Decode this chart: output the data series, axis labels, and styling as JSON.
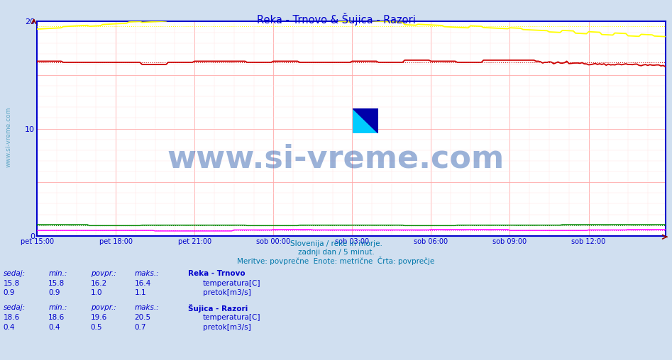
{
  "title": "Reka - Trnovo & Šujica - Razori",
  "title_color": "#0000cc",
  "background_color": "#d0dff0",
  "plot_bg_color": "#ffffff",
  "grid_color_major": "#ffaaaa",
  "grid_color_minor": "#ffe0e0",
  "x_labels": [
    "pet 15:00",
    "pet 18:00",
    "pet 21:00",
    "sob 00:00",
    "sob 03:00",
    "sob 06:00",
    "sob 09:00",
    "sob 12:00"
  ],
  "n_points": 288,
  "y_min": 0,
  "y_max": 20,
  "y_ticks": [
    0,
    10,
    20
  ],
  "axis_color": "#0000cc",
  "arrow_color": "#880000",
  "watermark_side": "www.si-vreme.com",
  "watermark_color_side": "#4499bb",
  "watermark_large": "www.si-vreme.com",
  "watermark_color_large": "#2255aa",
  "logo_colors": [
    "#ffff00",
    "#00ccff",
    "#0000aa"
  ],
  "subtitle1": "Slovenija / reke in morje.",
  "subtitle2": "zadnji dan / 5 minut.",
  "subtitle3": "Meritve: povprečne  Enote: metrične  Črta: povprečje",
  "subtitle_color": "#0077aa",
  "legend_title1": "Reka - Trnovo",
  "legend_title2": "Šujica - Razori",
  "legend_color": "#0000cc",
  "reka_temp_color": "#cc0000",
  "reka_flow_color": "#008800",
  "sujica_temp_color": "#ffff00",
  "sujica_flow_color": "#ff00ff",
  "reka_temp_avg": 16.2,
  "reka_flow_avg": 1.0,
  "sujica_temp_avg": 19.6,
  "sujica_flow_avg": 0.5,
  "reka_temp_min": 15.8,
  "reka_temp_max": 16.4,
  "reka_temp_current": 15.8,
  "reka_flow_min": 0.9,
  "reka_flow_max": 1.1,
  "reka_flow_current": 0.9,
  "sujica_temp_min": 18.6,
  "sujica_temp_max": 20.5,
  "sujica_temp_current": 18.6,
  "sujica_flow_min": 0.4,
  "sujica_flow_max": 0.7,
  "sujica_flow_current": 0.4,
  "info_color": "#0000cc",
  "sedaj_label": "sedaj:",
  "min_label": "min.:",
  "povpr_label": "povpr.:",
  "maks_label": "maks.:",
  "temp_label": "temperatura[C]",
  "flow_label": "pretok[m3/s]"
}
